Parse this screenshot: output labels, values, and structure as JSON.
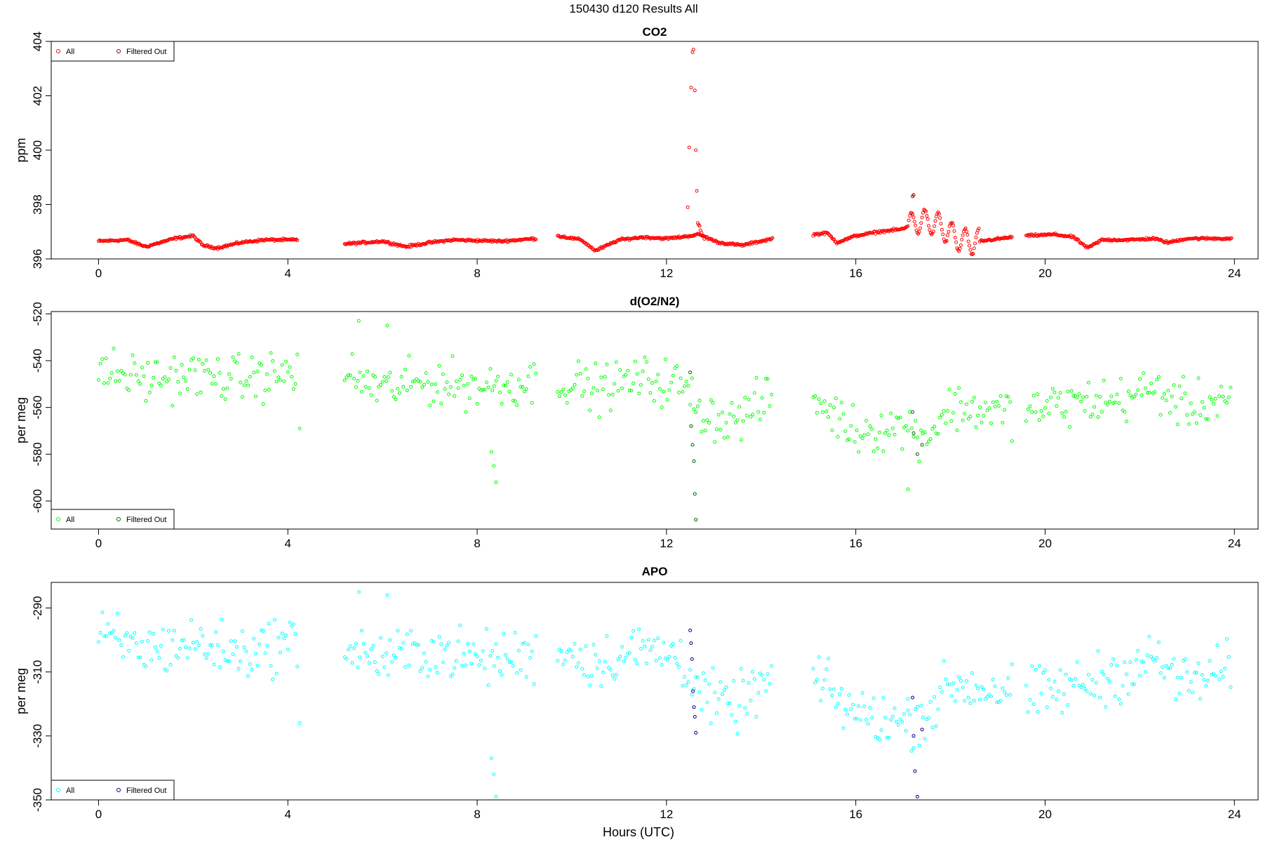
{
  "page": {
    "title": "150430   d120   Results All",
    "xlabel": "Hours (UTC)"
  },
  "legend": {
    "all_label": "All",
    "filtered_label": "Filtered Out"
  },
  "chart_data": [
    {
      "type": "scatter",
      "title": "CO2",
      "xlabel": "",
      "ylabel": "ppm",
      "xlim": [
        -1,
        24.5
      ],
      "ylim": [
        396,
        404
      ],
      "xticks": [
        0,
        4,
        8,
        12,
        16,
        20,
        24
      ],
      "yticks": [
        396,
        398,
        400,
        402,
        404
      ],
      "grid": false,
      "legend_position": "top-left",
      "colors": {
        "all": "#ff0000",
        "filtered": "#8b0000"
      },
      "series": [
        {
          "name": "All",
          "segments": [
            [
              0.0,
              4.2
            ],
            [
              5.2,
              9.25
            ],
            [
              9.7,
              14.25
            ],
            [
              15.1,
              19.3
            ],
            [
              19.6,
              23.95
            ]
          ],
          "step": 0.02,
          "baseline": [
            [
              0.0,
              396.65
            ],
            [
              0.6,
              396.7
            ],
            [
              1.0,
              396.45
            ],
            [
              1.3,
              396.6
            ],
            [
              1.6,
              396.75
            ],
            [
              2.0,
              396.85
            ],
            [
              2.2,
              396.5
            ],
            [
              2.5,
              396.4
            ],
            [
              3.0,
              396.6
            ],
            [
              3.5,
              396.7
            ],
            [
              4.2,
              396.7
            ],
            [
              5.2,
              396.55
            ],
            [
              6.0,
              396.65
            ],
            [
              6.5,
              396.45
            ],
            [
              7.0,
              396.6
            ],
            [
              7.5,
              396.7
            ],
            [
              8.5,
              396.65
            ],
            [
              9.25,
              396.75
            ],
            [
              9.7,
              396.85
            ],
            [
              10.2,
              396.7
            ],
            [
              10.5,
              396.3
            ],
            [
              11.0,
              396.7
            ],
            [
              11.5,
              396.8
            ],
            [
              12.0,
              396.75
            ],
            [
              12.3,
              396.8
            ],
            [
              12.7,
              396.9
            ],
            [
              13.1,
              396.6
            ],
            [
              13.6,
              396.5
            ],
            [
              14.25,
              396.75
            ],
            [
              15.1,
              396.9
            ],
            [
              15.4,
              396.95
            ],
            [
              15.6,
              396.6
            ],
            [
              16.0,
              396.85
            ],
            [
              16.5,
              397.0
            ],
            [
              17.0,
              397.1
            ],
            [
              17.3,
              397.4
            ],
            [
              17.7,
              397.3
            ],
            [
              18.1,
              396.8
            ],
            [
              18.4,
              396.6
            ],
            [
              19.3,
              396.8
            ],
            [
              19.6,
              396.85
            ],
            [
              20.2,
              396.9
            ],
            [
              20.6,
              396.8
            ],
            [
              20.9,
              396.4
            ],
            [
              21.2,
              396.7
            ],
            [
              21.8,
              396.7
            ],
            [
              22.3,
              396.75
            ],
            [
              22.6,
              396.6
            ],
            [
              23.0,
              396.75
            ],
            [
              23.95,
              396.75
            ]
          ],
          "noise": 0.03,
          "spike": {
            "x": [
              12.45,
              12.48,
              12.52,
              12.55,
              12.57,
              12.6,
              12.62,
              12.64
            ],
            "y": [
              397.9,
              400.1,
              402.3,
              403.6,
              403.7,
              402.2,
              400.0,
              398.5
            ]
          },
          "wiggle": {
            "x_range": [
              17.1,
              18.6
            ],
            "amplitude": 0.45
          }
        },
        {
          "name": "Filtered Out",
          "x": [
            17.2,
            17.22
          ],
          "y": [
            398.3,
            398.35
          ]
        }
      ]
    },
    {
      "type": "scatter",
      "title": "d(O2/N2)",
      "xlabel": "",
      "ylabel": "per meg",
      "xlim": [
        -1,
        24.5
      ],
      "ylim": [
        -612,
        -519
      ],
      "xticks": [
        0,
        4,
        8,
        12,
        16,
        20,
        24
      ],
      "yticks": [
        -600,
        -580,
        -560,
        -540,
        -520
      ],
      "grid": false,
      "legend_position": "bottom-left",
      "colors": {
        "all": "#00ff00",
        "filtered": "#006400"
      },
      "series": [
        {
          "name": "All",
          "segments": [
            [
              0.0,
              4.2
            ],
            [
              5.2,
              9.25
            ],
            [
              9.7,
              14.25
            ],
            [
              15.1,
              19.3
            ],
            [
              19.6,
              23.95
            ]
          ],
          "step": 0.04,
          "baseline": [
            [
              0.0,
              -544
            ],
            [
              1.0,
              -548
            ],
            [
              2.0,
              -546
            ],
            [
              3.0,
              -548
            ],
            [
              4.2,
              -545
            ],
            [
              5.2,
              -546
            ],
            [
              6.0,
              -552
            ],
            [
              7.0,
              -549
            ],
            [
              8.0,
              -551
            ],
            [
              9.25,
              -549
            ],
            [
              9.7,
              -548
            ],
            [
              10.5,
              -552
            ],
            [
              11.5,
              -548
            ],
            [
              12.3,
              -550
            ],
            [
              12.8,
              -563
            ],
            [
              13.4,
              -566
            ],
            [
              14.25,
              -555
            ],
            [
              15.1,
              -556
            ],
            [
              16.0,
              -570
            ],
            [
              17.0,
              -568
            ],
            [
              17.5,
              -572
            ],
            [
              18.0,
              -560
            ],
            [
              19.3,
              -562
            ],
            [
              19.6,
              -562
            ],
            [
              20.5,
              -558
            ],
            [
              21.5,
              -557
            ],
            [
              22.3,
              -552
            ],
            [
              23.0,
              -560
            ],
            [
              23.95,
              -555
            ]
          ],
          "noise": 7,
          "outliers": {
            "x": [
              4.25,
              5.5,
              6.1,
              8.3,
              8.35,
              8.4,
              17.1
            ],
            "y": [
              -569,
              -523,
              -525,
              -579,
              -585,
              -592,
              -595
            ]
          }
        },
        {
          "name": "Filtered Out",
          "x": [
            12.5,
            12.52,
            12.55,
            12.58,
            12.6,
            12.62,
            17.2,
            17.22,
            17.3,
            17.4
          ],
          "y": [
            -545,
            -568,
            -576,
            -583,
            -597,
            -608,
            -562,
            -571,
            -580,
            -576
          ]
        }
      ]
    },
    {
      "type": "scatter",
      "title": "APO",
      "xlabel": "Hours (UTC)",
      "ylabel": "per meg",
      "xlim": [
        -1,
        24.5
      ],
      "ylim": [
        -350,
        -282
      ],
      "xticks": [
        0,
        4,
        8,
        12,
        16,
        20,
        24
      ],
      "yticks": [
        -350,
        -330,
        -310,
        -290
      ],
      "grid": false,
      "legend_position": "bottom-left",
      "colors": {
        "all": "#00ffff",
        "filtered": "#00008b"
      },
      "series": [
        {
          "name": "All",
          "segments": [
            [
              0.0,
              4.2
            ],
            [
              5.2,
              9.25
            ],
            [
              9.7,
              14.25
            ],
            [
              15.1,
              19.3
            ],
            [
              19.6,
              23.95
            ]
          ],
          "step": 0.04,
          "baseline": [
            [
              0.0,
              -299
            ],
            [
              1.0,
              -303
            ],
            [
              2.0,
              -301
            ],
            [
              3.0,
              -304
            ],
            [
              4.2,
              -300
            ],
            [
              5.2,
              -302
            ],
            [
              6.0,
              -306
            ],
            [
              7.0,
              -303
            ],
            [
              8.0,
              -306
            ],
            [
              9.25,
              -305
            ],
            [
              9.7,
              -302
            ],
            [
              10.5,
              -307
            ],
            [
              11.5,
              -303
            ],
            [
              12.3,
              -305
            ],
            [
              12.8,
              -318
            ],
            [
              13.4,
              -321
            ],
            [
              14.25,
              -312
            ],
            [
              15.1,
              -312
            ],
            [
              16.0,
              -323
            ],
            [
              17.0,
              -326
            ],
            [
              17.5,
              -323
            ],
            [
              18.0,
              -314
            ],
            [
              19.3,
              -316
            ],
            [
              19.6,
              -318
            ],
            [
              20.5,
              -315
            ],
            [
              21.5,
              -311
            ],
            [
              22.3,
              -306
            ],
            [
              23.0,
              -314
            ],
            [
              23.95,
              -309
            ]
          ],
          "noise": 6,
          "outliers": {
            "x": [
              4.25,
              5.5,
              6.1,
              8.3,
              8.35,
              8.4,
              17.1
            ],
            "y": [
              -326,
              -285,
              -286,
              -337,
              -342,
              -349,
              -322
            ]
          }
        },
        {
          "name": "Filtered Out",
          "x": [
            12.5,
            12.52,
            12.54,
            12.56,
            12.58,
            12.6,
            12.62,
            17.2,
            17.22,
            17.25,
            17.3,
            17.4
          ],
          "y": [
            -297,
            -301,
            -306,
            -316,
            -321,
            -324,
            -329,
            -318,
            -330,
            -341,
            -349,
            -328
          ]
        }
      ]
    }
  ]
}
